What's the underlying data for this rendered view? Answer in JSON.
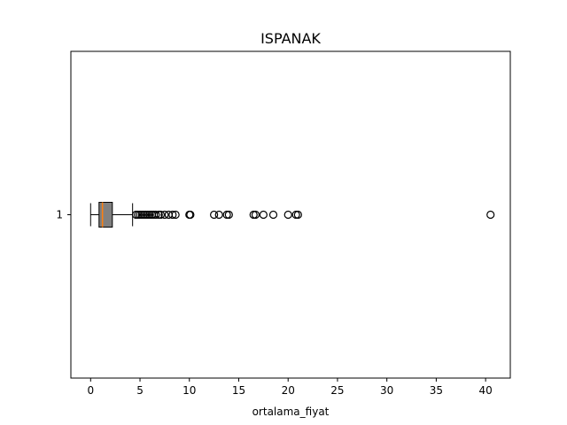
{
  "chart_data": {
    "type": "boxplot",
    "orientation": "horizontal",
    "title": "ISPANAK",
    "xlabel": "ortalama_fiyat",
    "ylabel": "",
    "xlim": [
      -2.0,
      42.5
    ],
    "xticks": [
      0,
      5,
      10,
      15,
      20,
      25,
      30,
      35,
      40
    ],
    "yticks": [
      "1"
    ],
    "grid": false,
    "colors": {
      "box_fill": "#808080",
      "median": "#ff7f0e",
      "lines": "#000000",
      "flier_edge": "#000000"
    },
    "boxes": [
      {
        "label": "1",
        "whisker_low": 0.0,
        "q1": 0.85,
        "median": 1.2,
        "q3": 2.2,
        "whisker_high": 4.25,
        "fliers": [
          4.6,
          4.8,
          5.0,
          5.2,
          5.4,
          5.6,
          5.8,
          6.0,
          6.2,
          6.4,
          6.6,
          6.9,
          7.1,
          7.5,
          7.9,
          8.3,
          8.6,
          10.0,
          10.1,
          12.5,
          13.0,
          13.8,
          14.0,
          16.5,
          16.7,
          17.5,
          18.5,
          20.0,
          20.8,
          21.0,
          40.5
        ]
      }
    ]
  }
}
